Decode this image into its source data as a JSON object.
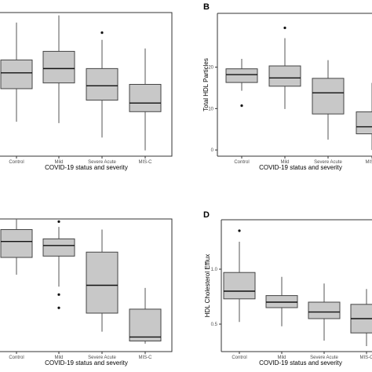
{
  "chart_data": [
    {
      "type": "box",
      "panel_letter": "",
      "title": "",
      "xlabel": "COVID-19 status and severity",
      "ylabel": "",
      "categories": [
        "Control",
        "Mild",
        "Severe Acute",
        "MIS-C"
      ],
      "y_ticks": [],
      "ylim": [
        0,
        100
      ],
      "boxes": [
        {
          "whisker_low": 24,
          "q1": 47,
          "median": 58,
          "q3": 67,
          "whisker_high": 93,
          "outliers": []
        },
        {
          "whisker_low": 23,
          "q1": 51,
          "median": 61,
          "q3": 73,
          "whisker_high": 98,
          "outliers": []
        },
        {
          "whisker_low": 13,
          "q1": 39,
          "median": 49,
          "q3": 61,
          "whisker_high": 81,
          "outliers": [
            86
          ]
        },
        {
          "whisker_low": 4,
          "q1": 31,
          "median": 37,
          "q3": 50,
          "whisker_high": 75,
          "outliers": []
        }
      ]
    },
    {
      "type": "box",
      "panel_letter": "B",
      "title": "",
      "xlabel": "COVID-19 status and severity",
      "ylabel": "Total HDL Particles",
      "categories": [
        "Control",
        "Mild",
        "Severe Acute",
        "MIS-C"
      ],
      "y_ticks": [
        0,
        10,
        20
      ],
      "ylim": [
        -1.5,
        33
      ],
      "boxes": [
        {
          "whisker_low": 14.3,
          "q1": 16.3,
          "median": 18.2,
          "q3": 19.6,
          "whisker_high": 22,
          "outliers": [
            10.7
          ]
        },
        {
          "whisker_low": 9.9,
          "q1": 15.4,
          "median": 17.4,
          "q3": 20.3,
          "whisker_high": 27,
          "outliers": [
            29.5
          ]
        },
        {
          "whisker_low": 2.5,
          "q1": 8.7,
          "median": 13.8,
          "q3": 17.3,
          "whisker_high": 21.7,
          "outliers": []
        },
        {
          "whisker_low": 0,
          "q1": 3.9,
          "median": 5.6,
          "q3": 9.2,
          "whisker_high": 16.2,
          "outliers": []
        }
      ]
    },
    {
      "type": "box",
      "panel_letter": "",
      "title": "",
      "xlabel": "COVID-19 status and severity",
      "ylabel": "",
      "categories": [
        "Control",
        "Mild",
        "Severe Acute",
        "MIS-C"
      ],
      "y_ticks": [],
      "ylim": [
        0,
        100
      ],
      "boxes": [
        {
          "whisker_low": 58,
          "q1": 71,
          "median": 83,
          "q3": 92,
          "whisker_high": 100,
          "outliers": []
        },
        {
          "whisker_low": 49,
          "q1": 72,
          "median": 80,
          "q3": 85,
          "whisker_high": 94,
          "outliers": [
            98,
            43,
            33
          ]
        },
        {
          "whisker_low": 15,
          "q1": 29,
          "median": 50,
          "q3": 75,
          "whisker_high": 92,
          "outliers": []
        },
        {
          "whisker_low": 6,
          "q1": 8,
          "median": 11,
          "q3": 32,
          "whisker_high": 48,
          "outliers": []
        }
      ]
    },
    {
      "type": "box",
      "panel_letter": "D",
      "title": "",
      "xlabel": "COVID-19 status and severity",
      "ylabel": "HDL Cholesterol Efflux",
      "categories": [
        "Control",
        "Mild",
        "Severe Acute",
        "MIS-C"
      ],
      "y_ticks": [
        0.5,
        1.0
      ],
      "ylim": [
        0.25,
        1.45
      ],
      "boxes": [
        {
          "whisker_low": 0.52,
          "q1": 0.73,
          "median": 0.8,
          "q3": 0.97,
          "whisker_high": 1.25,
          "outliers": [
            1.35
          ]
        },
        {
          "whisker_low": 0.48,
          "q1": 0.65,
          "median": 0.7,
          "q3": 0.76,
          "whisker_high": 0.93,
          "outliers": []
        },
        {
          "whisker_low": 0.35,
          "q1": 0.55,
          "median": 0.61,
          "q3": 0.7,
          "whisker_high": 0.87,
          "outliers": []
        },
        {
          "whisker_low": 0.3,
          "q1": 0.42,
          "median": 0.55,
          "q3": 0.68,
          "whisker_high": 0.82,
          "outliers": []
        }
      ]
    }
  ]
}
